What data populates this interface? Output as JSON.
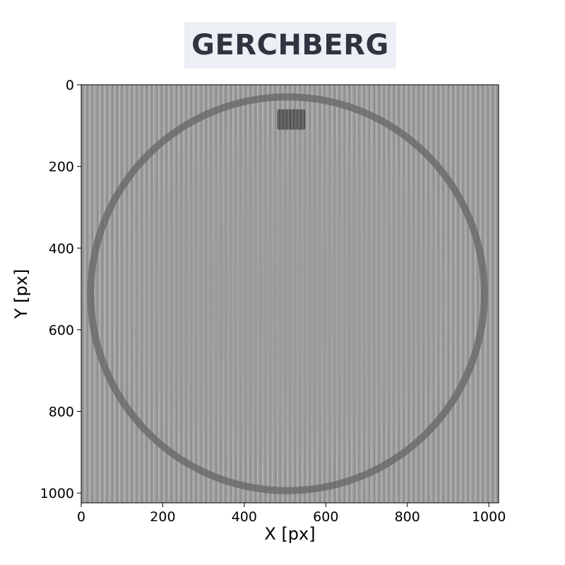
{
  "chart_data": {
    "type": "heatmap",
    "title": "GERCHBERG",
    "xlabel": "X [px]",
    "ylabel": "Y [px]",
    "xlim": [
      0,
      1024
    ],
    "ylim": [
      1024,
      0
    ],
    "xticks": [
      0,
      200,
      400,
      600,
      800,
      1000
    ],
    "yticks": [
      0,
      200,
      400,
      600,
      800,
      1000
    ],
    "colormap": "gray",
    "image_size": [
      1024,
      1024
    ],
    "features": {
      "ring": {
        "center_x": 506,
        "center_y": 512,
        "radius": 483,
        "tone": "dark"
      },
      "rectangle": {
        "x0": 480,
        "y0": 60,
        "x1": 550,
        "y1": 110,
        "tone": "dark"
      },
      "fringes": "vertical interference stripes across the field"
    }
  },
  "colors": {
    "title_background": "#eceff4",
    "title_text": "#2e3440",
    "field_gray": "#9c9c9c",
    "ring_gray": "#666666"
  }
}
